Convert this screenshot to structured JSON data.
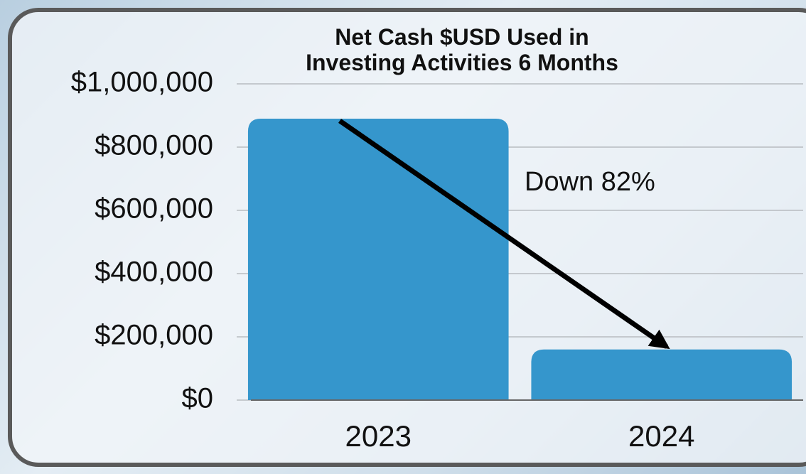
{
  "chart_data": {
    "type": "bar",
    "title": "Net Cash $USD Used in\nInvesting Activities 6 Months",
    "annotation": "Down 82%",
    "categories": [
      "2023",
      "2024"
    ],
    "values": [
      890000,
      160000
    ],
    "color": "#3596cc",
    "ylim": [
      0,
      1000000
    ],
    "yticks": [
      {
        "value": 0,
        "label": "$0"
      },
      {
        "value": 200000,
        "label": "$200,000"
      },
      {
        "value": 400000,
        "label": "$400,000"
      },
      {
        "value": 600000,
        "label": "$600,000"
      },
      {
        "value": 800000,
        "label": "$800,000"
      },
      {
        "value": 1000000,
        "label": "$1,000,000"
      }
    ],
    "grid": true
  }
}
